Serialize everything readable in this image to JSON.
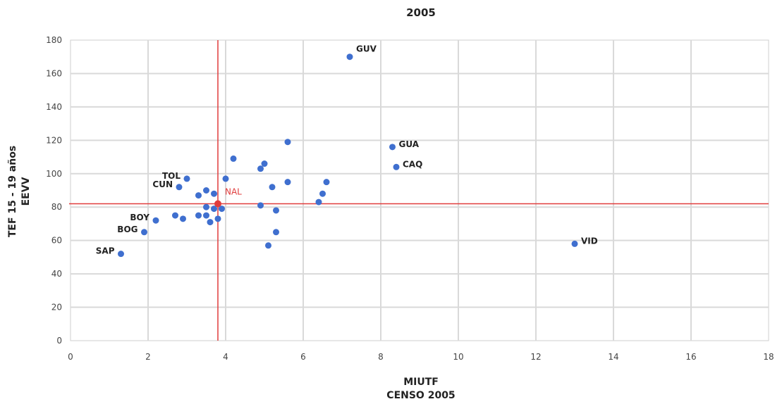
{
  "chart_data": {
    "type": "scatter",
    "title": "2005",
    "xlabel": [
      "MIUTF",
      "CENSO 2005"
    ],
    "ylabel": [
      "TEF 15 - 19 años",
      "EEVV"
    ],
    "xlim": [
      0,
      18
    ],
    "ylim": [
      0,
      180
    ],
    "xticks": [
      "0",
      "2",
      "4",
      "6",
      "8",
      "10",
      "12",
      "14",
      "16",
      "18"
    ],
    "yticks": [
      "0",
      "20",
      "40",
      "60",
      "80",
      "100",
      "120",
      "140",
      "160",
      "180"
    ],
    "grid": true,
    "point_color": "#3f6fcf",
    "reference_color": "#e03c3c",
    "reference": {
      "label": "NAL",
      "x": 3.8,
      "y": 82
    },
    "points": [
      {
        "x": 7.2,
        "y": 170,
        "label": "GUV"
      },
      {
        "x": 8.3,
        "y": 116,
        "label": "GUA"
      },
      {
        "x": 8.4,
        "y": 104,
        "label": "CAQ"
      },
      {
        "x": 13.0,
        "y": 58,
        "label": "VID"
      },
      {
        "x": 1.3,
        "y": 52,
        "label": "SAP"
      },
      {
        "x": 1.9,
        "y": 65,
        "label": "BOG"
      },
      {
        "x": 2.2,
        "y": 72,
        "label": "BOY"
      },
      {
        "x": 2.8,
        "y": 92,
        "label": "CUN"
      },
      {
        "x": 3.0,
        "y": 97,
        "label": "TOL"
      },
      {
        "x": 2.7,
        "y": 75,
        "label": ""
      },
      {
        "x": 2.9,
        "y": 73,
        "label": ""
      },
      {
        "x": 3.3,
        "y": 87,
        "label": ""
      },
      {
        "x": 3.3,
        "y": 75,
        "label": ""
      },
      {
        "x": 3.5,
        "y": 90,
        "label": ""
      },
      {
        "x": 3.5,
        "y": 80,
        "label": ""
      },
      {
        "x": 3.5,
        "y": 75,
        "label": ""
      },
      {
        "x": 3.6,
        "y": 71,
        "label": ""
      },
      {
        "x": 3.7,
        "y": 88,
        "label": ""
      },
      {
        "x": 3.7,
        "y": 79,
        "label": ""
      },
      {
        "x": 3.8,
        "y": 73,
        "label": ""
      },
      {
        "x": 3.9,
        "y": 79,
        "label": ""
      },
      {
        "x": 4.0,
        "y": 97,
        "label": ""
      },
      {
        "x": 4.2,
        "y": 109,
        "label": ""
      },
      {
        "x": 4.9,
        "y": 103,
        "label": ""
      },
      {
        "x": 5.0,
        "y": 106,
        "label": ""
      },
      {
        "x": 4.9,
        "y": 81,
        "label": ""
      },
      {
        "x": 5.1,
        "y": 57,
        "label": ""
      },
      {
        "x": 5.2,
        "y": 92,
        "label": ""
      },
      {
        "x": 5.3,
        "y": 78,
        "label": ""
      },
      {
        "x": 5.3,
        "y": 65,
        "label": ""
      },
      {
        "x": 5.6,
        "y": 119,
        "label": ""
      },
      {
        "x": 5.6,
        "y": 95,
        "label": ""
      },
      {
        "x": 6.4,
        "y": 83,
        "label": ""
      },
      {
        "x": 6.5,
        "y": 88,
        "label": ""
      },
      {
        "x": 6.6,
        "y": 95,
        "label": ""
      }
    ]
  }
}
